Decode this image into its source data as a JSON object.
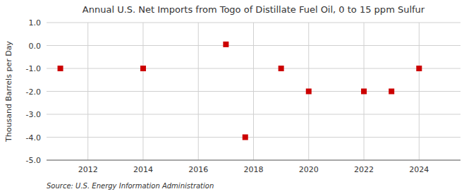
{
  "chart_data": {
    "type": "scatter",
    "title": "Annual U.S. Net Imports from Togo of Distillate Fuel Oil, 0 to 15 ppm Sulfur",
    "y_label": "Thousand Barrels per Day",
    "source": "Source: U.S. Energy Information Administration",
    "x": [
      2011,
      2014,
      2017,
      2017.7,
      2019,
      2020,
      2022,
      2023,
      2024
    ],
    "values": [
      -1.0,
      -1.0,
      0.05,
      -4.0,
      -1.0,
      -2.0,
      -2.0,
      -2.0,
      -1.0
    ],
    "color": "#cc0000",
    "marker": "square",
    "xlim": [
      2010.5,
      2025.5
    ],
    "ylim": [
      -5.0,
      1.0
    ],
    "xticks": [
      2012,
      2014,
      2016,
      2018,
      2020,
      2022,
      2024
    ],
    "yticks": [
      {
        "value": 1.0,
        "label": "1.0"
      },
      {
        "value": 0.0,
        "label": "0.0"
      },
      {
        "value": -1.0,
        "label": "-1.0"
      },
      {
        "value": -2.0,
        "label": "-2.0"
      },
      {
        "value": -3.0,
        "label": "-3.0"
      },
      {
        "value": -4.0,
        "label": "-4.0"
      },
      {
        "value": -5.0,
        "label": "-5.0"
      }
    ],
    "grid": true
  }
}
